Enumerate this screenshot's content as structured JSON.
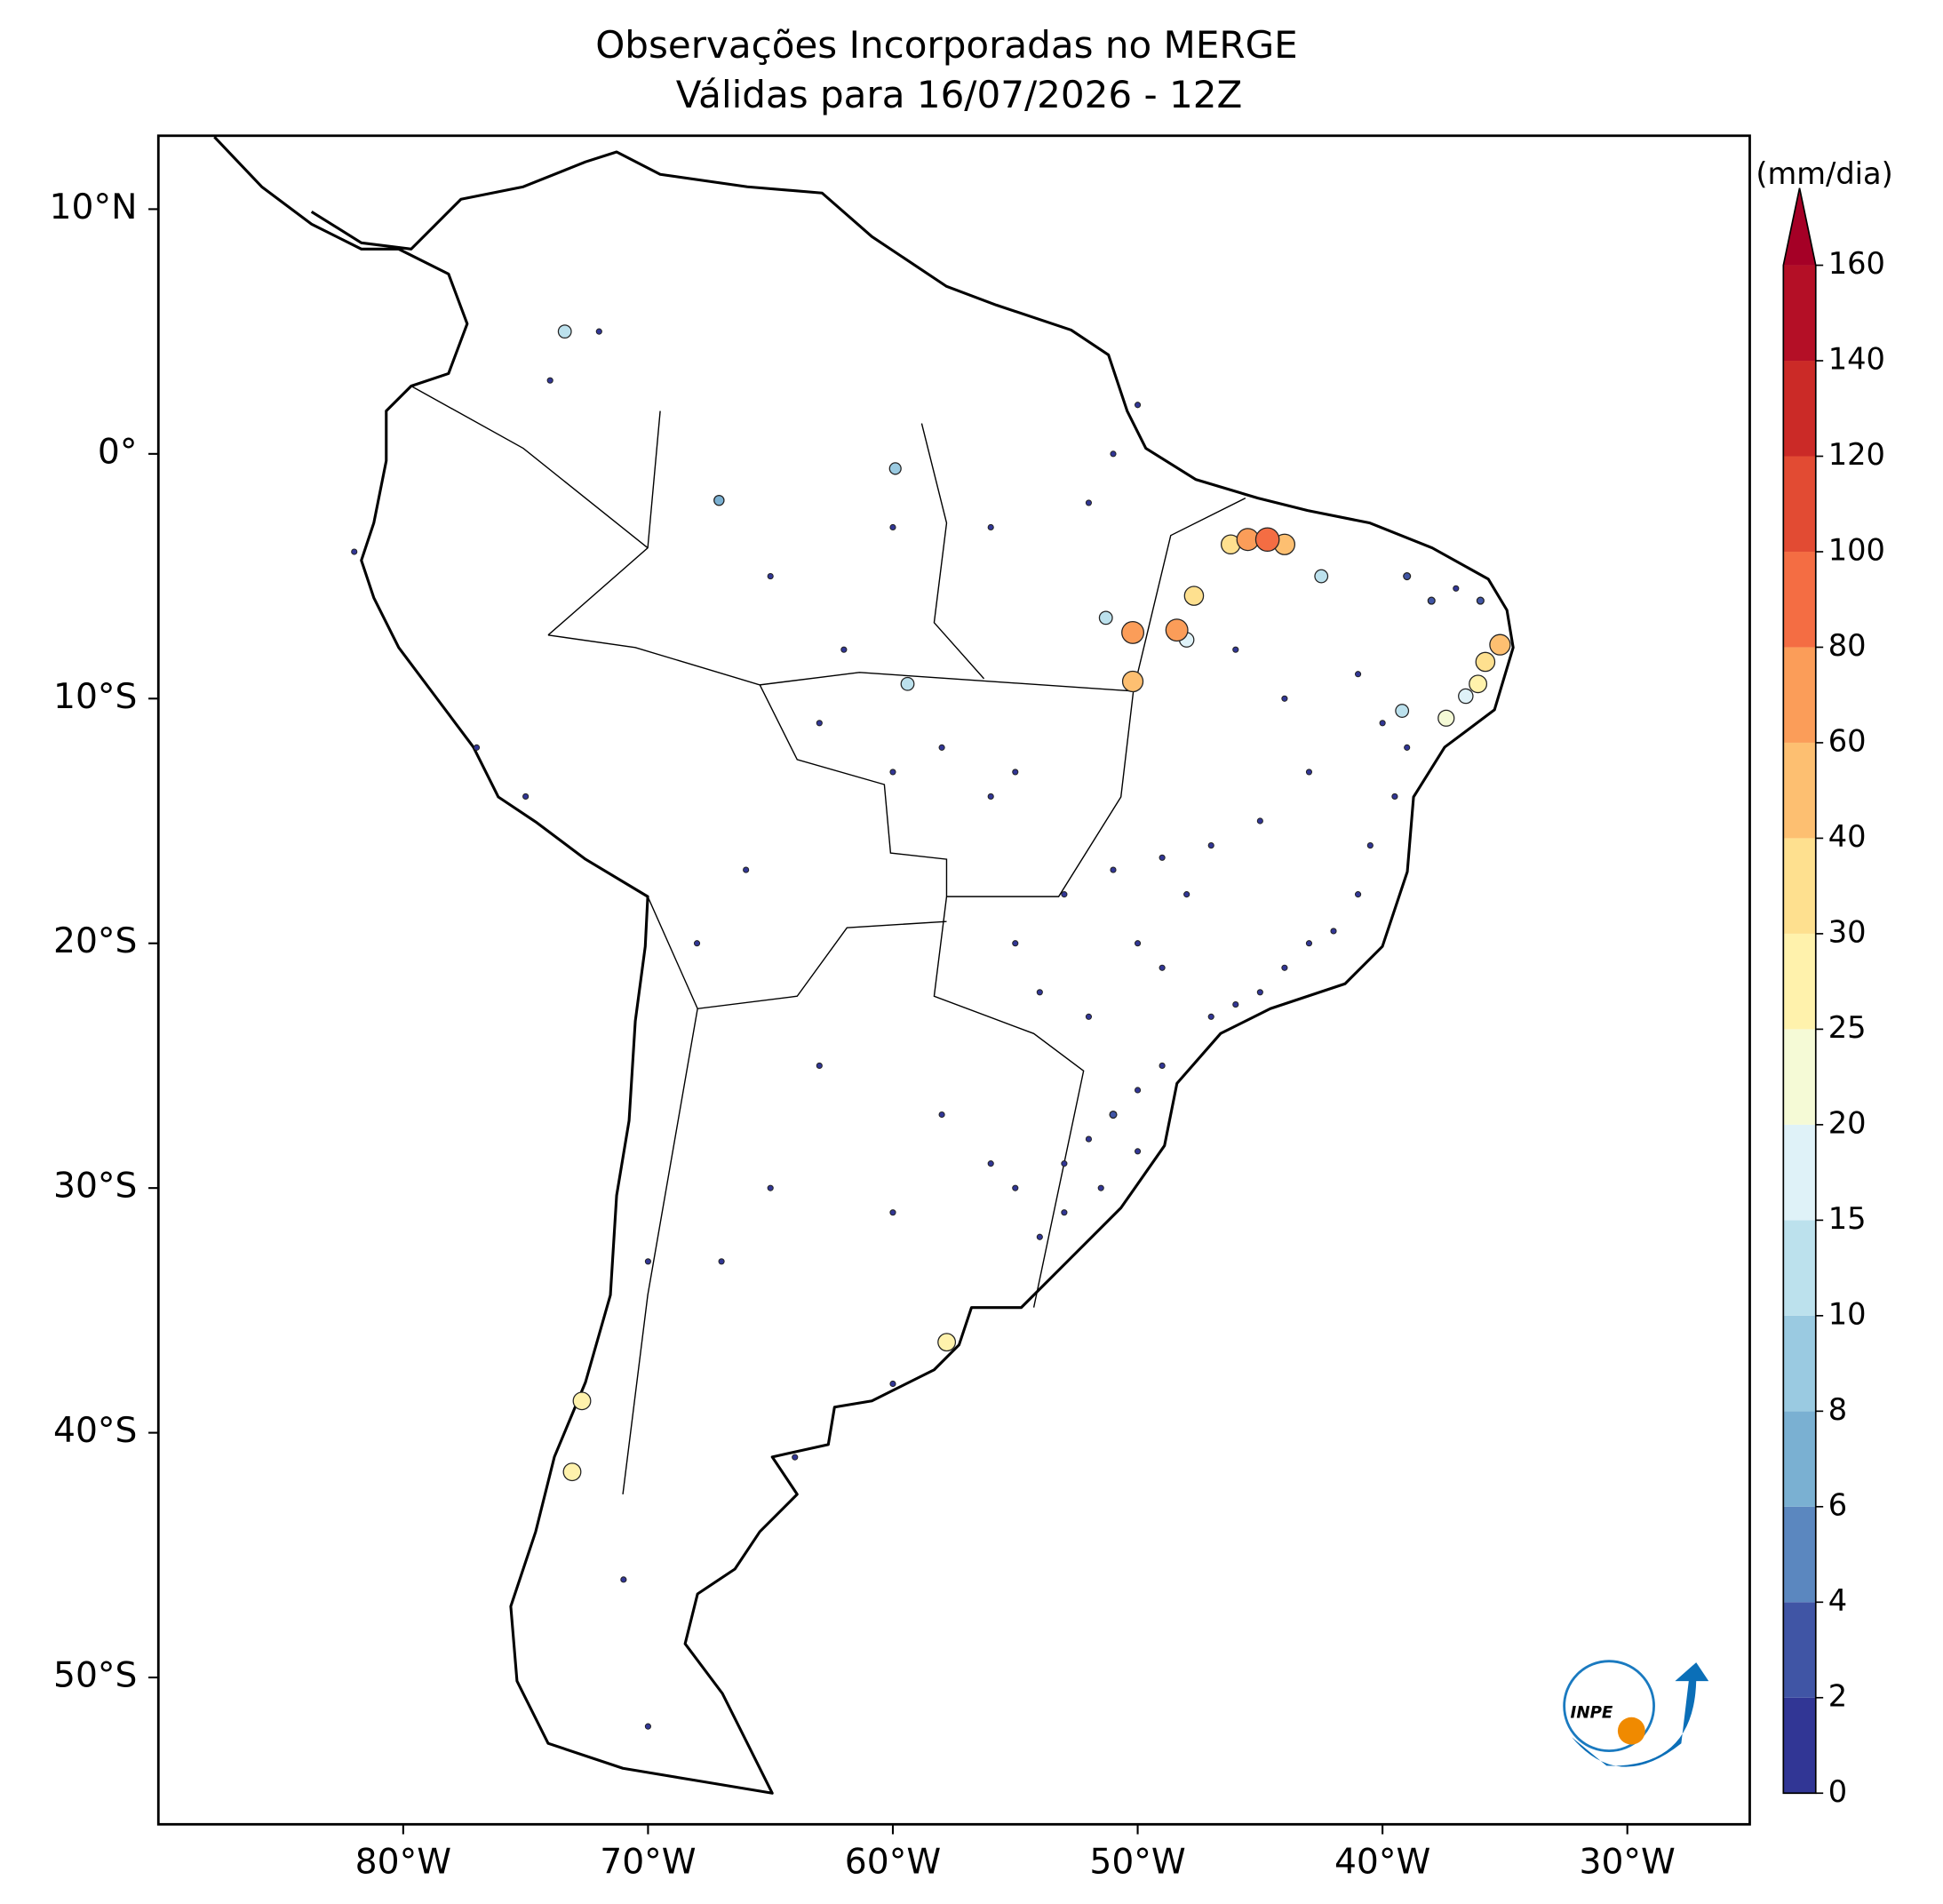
{
  "map": {
    "title": "Observações Incorporadas no MERGE",
    "subtitle": "Válidas para 16/07/2026 - 12Z",
    "xlim": [
      -90,
      -25
    ],
    "ylim": [
      -56,
      13
    ],
    "xticks": [
      {
        "value": -80,
        "label": "80°W"
      },
      {
        "value": -70,
        "label": "70°W"
      },
      {
        "value": -60,
        "label": "60°W"
      },
      {
        "value": -50,
        "label": "50°W"
      },
      {
        "value": -40,
        "label": "40°W"
      },
      {
        "value": -30,
        "label": "30°W"
      }
    ],
    "yticks": [
      {
        "value": 10,
        "label": "10°N"
      },
      {
        "value": 0,
        "label": "0°"
      },
      {
        "value": -10,
        "label": "10°S"
      },
      {
        "value": -20,
        "label": "20°S"
      },
      {
        "value": -30,
        "label": "30°S"
      },
      {
        "value": -40,
        "label": "40°S"
      },
      {
        "value": -50,
        "label": "50°S"
      }
    ],
    "colorbar": {
      "label": "(mm/dia)",
      "levels": [
        0,
        2,
        4,
        6,
        8,
        10,
        15,
        20,
        25,
        30,
        40,
        60,
        80,
        100,
        120,
        140,
        160
      ],
      "colors": [
        "#313695",
        "#4055a5",
        "#5b87bf",
        "#7ab0d2",
        "#9acae1",
        "#bce1ed",
        "#dff2f8",
        "#f5fad6",
        "#fff2ac",
        "#fee08f",
        "#fdbf71",
        "#fb9d59",
        "#f46d43",
        "#e24b33",
        "#cb2a27",
        "#b40f26"
      ],
      "extend_color": "#a50026"
    },
    "logo": "INPE",
    "points": [
      [
        -45.5,
        -3.5,
        70
      ],
      [
        -44.7,
        -3.5,
        80
      ],
      [
        -44.0,
        -3.7,
        50
      ],
      [
        -46.2,
        -3.7,
        30
      ],
      [
        -50.2,
        -7.3,
        70
      ],
      [
        -48.4,
        -7.2,
        60
      ],
      [
        -50.2,
        -9.3,
        40
      ],
      [
        -47.7,
        -5.8,
        30
      ],
      [
        -51.3,
        -6.7,
        12
      ],
      [
        -42.5,
        -5.0,
        10
      ],
      [
        -35.8,
        -8.5,
        30
      ],
      [
        -35.2,
        -7.8,
        40
      ],
      [
        -36.1,
        -9.4,
        25
      ],
      [
        -37.4,
        -10.8,
        20
      ],
      [
        -39.2,
        -10.5,
        10
      ],
      [
        -57.8,
        -36.3,
        25
      ],
      [
        -72.7,
        -38.7,
        25
      ],
      [
        -73.1,
        -41.6,
        25
      ],
      [
        -73.4,
        5.0,
        10
      ],
      [
        -67.1,
        -1.9,
        6
      ],
      [
        -59.4,
        -9.4,
        12
      ],
      [
        -59.9,
        -0.6,
        8
      ],
      [
        -48.0,
        -7.6,
        15
      ],
      [
        -36.6,
        -9.9,
        15
      ],
      [
        -47,
        -23,
        1
      ],
      [
        -46,
        -22.5,
        1
      ],
      [
        -45,
        -22,
        1
      ],
      [
        -44,
        -21,
        1
      ],
      [
        -43,
        -20,
        1
      ],
      [
        -42,
        -19.5,
        1
      ],
      [
        -41,
        -18,
        1
      ],
      [
        -40.5,
        -16,
        1
      ],
      [
        -39.5,
        -14,
        1
      ],
      [
        -39,
        -12,
        1
      ],
      [
        -40,
        -11,
        1
      ],
      [
        -41,
        -9,
        1
      ],
      [
        -38,
        -6,
        3
      ],
      [
        -39,
        -5,
        3
      ],
      [
        -37,
        -5.5,
        1
      ],
      [
        -36,
        -6,
        3
      ],
      [
        -49,
        -25,
        1
      ],
      [
        -50,
        -26,
        1
      ],
      [
        -51,
        -27,
        3
      ],
      [
        -52,
        -28,
        1
      ],
      [
        -53,
        -29,
        1
      ],
      [
        -51.5,
        -30,
        1
      ],
      [
        -50,
        -28.5,
        1
      ],
      [
        -53,
        -31,
        1
      ],
      [
        -54,
        -32,
        1
      ],
      [
        -55,
        -30,
        1
      ],
      [
        -56,
        -29,
        1
      ],
      [
        -49,
        -21,
        1
      ],
      [
        -50,
        -20,
        1
      ],
      [
        -48,
        -18,
        1
      ],
      [
        -47,
        -16,
        1
      ],
      [
        -49,
        -16.5,
        1
      ],
      [
        -51,
        -17,
        1
      ],
      [
        -53,
        -18,
        1
      ],
      [
        -55,
        -20,
        1
      ],
      [
        -54,
        -22,
        1
      ],
      [
        -52,
        -23,
        1
      ],
      [
        -56,
        -14,
        1
      ],
      [
        -58,
        -12,
        1
      ],
      [
        -55,
        -13,
        1
      ],
      [
        -60,
        -13,
        1
      ],
      [
        -63,
        -11,
        1
      ],
      [
        -62,
        -8,
        1
      ],
      [
        -65,
        -5,
        1
      ],
      [
        -60,
        -3,
        1
      ],
      [
        -56,
        -3,
        1
      ],
      [
        -52,
        -2,
        1
      ],
      [
        -51,
        0,
        1
      ],
      [
        -50,
        2,
        1
      ],
      [
        -46,
        -8,
        1
      ],
      [
        -44,
        -10,
        1
      ],
      [
        -43,
        -13,
        1
      ],
      [
        -45,
        -15,
        1
      ],
      [
        -63,
        -25,
        1
      ],
      [
        -65,
        -30,
        1
      ],
      [
        -60,
        -31,
        1
      ],
      [
        -67,
        -33,
        1
      ],
      [
        -70,
        -33,
        1
      ],
      [
        -68,
        -20,
        1
      ],
      [
        -66,
        -17,
        1
      ],
      [
        -75,
        -14,
        1
      ],
      [
        -77,
        -12,
        1
      ],
      [
        -72,
        5,
        1
      ],
      [
        -74,
        3,
        1
      ],
      [
        -71,
        -46,
        1
      ],
      [
        -60,
        -38,
        1
      ],
      [
        -64,
        -41,
        1
      ],
      [
        -58,
        -27,
        1
      ],
      [
        -82,
        -4,
        1
      ],
      [
        -70,
        -52,
        1
      ]
    ]
  }
}
